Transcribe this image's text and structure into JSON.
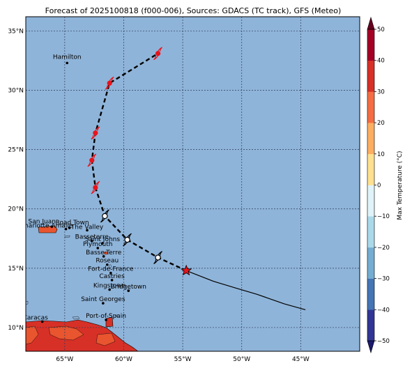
{
  "title": "Forecast of 2025100818 (f000-006), Sources: GDACS (TC track), GFS (Meteo)",
  "map": {
    "lon_range": [
      -68.3,
      -40.0
    ],
    "lat_range": [
      8.0,
      36.2
    ],
    "ocean_color": "#8fb4d9",
    "lon_ticks": [
      {
        "value": -65,
        "label": "65°W"
      },
      {
        "value": -60,
        "label": "60°W"
      },
      {
        "value": -55,
        "label": "55°W"
      },
      {
        "value": -50,
        "label": "50°W"
      },
      {
        "value": -45,
        "label": "45°W"
      }
    ],
    "lat_ticks": [
      {
        "value": 10,
        "label": "10°N"
      },
      {
        "value": 15,
        "label": "15°N"
      },
      {
        "value": 20,
        "label": "20°N"
      },
      {
        "value": 25,
        "label": "25°N"
      },
      {
        "value": 30,
        "label": "30°N"
      },
      {
        "value": 35,
        "label": "35°N"
      }
    ],
    "grid": true
  },
  "cities": [
    {
      "name": "Hamilton",
      "lon": -64.8,
      "lat": 32.3
    },
    {
      "name": "San Juan",
      "lon": -66.1,
      "lat": 18.5
    },
    {
      "name": "Road Town",
      "lon": -64.6,
      "lat": 18.4
    },
    {
      "name": "Charlotte Amalie",
      "lon": -64.9,
      "lat": 18.3
    },
    {
      "name": "The Valley",
      "lon": -63.1,
      "lat": 18.2
    },
    {
      "name": "Basseterre",
      "lon": -62.7,
      "lat": 17.3
    },
    {
      "name": "Saint Johns",
      "lon": -61.8,
      "lat": 17.1
    },
    {
      "name": "Plymouth",
      "lon": -62.2,
      "lat": 16.7
    },
    {
      "name": "Basse-Terre",
      "lon": -61.7,
      "lat": 16.0
    },
    {
      "name": "Roseau",
      "lon": -61.4,
      "lat": 15.3
    },
    {
      "name": "Fort-de-France",
      "lon": -61.1,
      "lat": 14.6
    },
    {
      "name": "Castries",
      "lon": -61.0,
      "lat": 14.0
    },
    {
      "name": "Kingstown",
      "lon": -61.2,
      "lat": 13.2
    },
    {
      "name": "Bridgetown",
      "lon": -59.6,
      "lat": 13.1
    },
    {
      "name": "Saint Georges",
      "lon": -61.75,
      "lat": 12.05
    },
    {
      "name": "Port-of-Spain",
      "lon": -61.5,
      "lat": 10.65
    },
    {
      "name": "Caracas",
      "lon": -66.9,
      "lat": 10.5
    }
  ],
  "track": {
    "forecast_points": [
      {
        "lon": -57.1,
        "lat": 33.1,
        "color": "#e8141c"
      },
      {
        "lon": -61.2,
        "lat": 30.6,
        "color": "#e8141c"
      },
      {
        "lon": -62.4,
        "lat": 26.4,
        "color": "#e8141c"
      },
      {
        "lon": -62.7,
        "lat": 24.1,
        "color": "#e8141c"
      },
      {
        "lon": -62.4,
        "lat": 21.8,
        "color": "#e8141c"
      },
      {
        "lon": -61.6,
        "lat": 19.4,
        "color": "#ffffff"
      },
      {
        "lon": -59.7,
        "lat": 17.4,
        "color": "#ffffff"
      },
      {
        "lon": -57.1,
        "lat": 15.9,
        "color": "#ffffff"
      }
    ],
    "current": {
      "lon": -54.7,
      "lat": 14.8,
      "color": "#e8141c"
    },
    "past": [
      {
        "lon": -54.7,
        "lat": 14.8
      },
      {
        "lon": -52.4,
        "lat": 13.9
      },
      {
        "lon": -50.4,
        "lat": 13.3
      },
      {
        "lon": -48.7,
        "lat": 12.8
      },
      {
        "lon": -46.4,
        "lat": 12.0
      },
      {
        "lon": -44.6,
        "lat": 11.5
      }
    ]
  },
  "colorbar": {
    "label": "Max Temperature (°C)",
    "min": -50,
    "max": 50,
    "ticks": [
      50,
      40,
      30,
      20,
      10,
      0,
      -10,
      -20,
      -30,
      -40,
      -50
    ],
    "tick_labels": [
      "50",
      "40",
      "30",
      "20",
      "10",
      "0",
      "−10",
      "−20",
      "−30",
      "−40",
      "−50"
    ],
    "colors": [
      "#313695",
      "#4575b4",
      "#74add1",
      "#abd9e9",
      "#e0f3f8",
      "#fee090",
      "#fdae61",
      "#f46d43",
      "#d73027",
      "#a50026"
    ]
  }
}
